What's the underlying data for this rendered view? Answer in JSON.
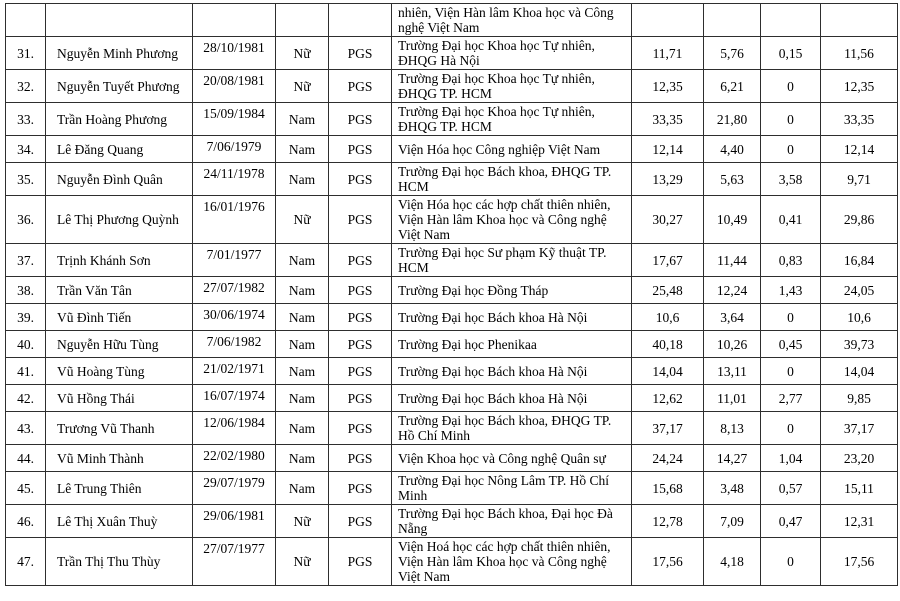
{
  "colors": {
    "background": "#ffffff",
    "border": "#2e2e2e",
    "text": "#000000"
  },
  "table": {
    "continuation": {
      "no": "",
      "name": "",
      "dob": "",
      "gender": "",
      "title": "",
      "institution": "nhiên, Viện Hàn lâm Khoa học và Công nghệ Việt Nam",
      "values": [
        "",
        "",
        "",
        ""
      ]
    },
    "rows": [
      {
        "no": "31.",
        "name": "Nguyễn Minh Phương",
        "dob": "28/10/1981",
        "gender": "Nữ",
        "title": "PGS",
        "institution": "Trường Đại học Khoa học Tự nhiên, ĐHQG  Hà Nội",
        "values": [
          "11,71",
          "5,76",
          "0,15",
          "11,56"
        ]
      },
      {
        "no": "32.",
        "name": "Nguyễn Tuyết Phương",
        "dob": "20/08/1981",
        "gender": "Nữ",
        "title": "PGS",
        "institution": "Trường Đại học Khoa học Tự nhiên, ĐHQG TP. HCM",
        "values": [
          "12,35",
          "6,21",
          "0",
          "12,35"
        ]
      },
      {
        "no": "33.",
        "name": "Trần Hoàng Phương",
        "dob": "15/09/1984",
        "gender": "Nam",
        "title": "PGS",
        "institution": "Trường Đại học Khoa học Tự nhiên, ĐHQG TP. HCM",
        "values": [
          "33,35",
          "21,80",
          "0",
          "33,35"
        ]
      },
      {
        "no": "34.",
        "name": "Lê Đăng Quang",
        "dob": "7/06/1979",
        "gender": "Nam",
        "title": "PGS",
        "institution": "Viện Hóa học Công nghiệp Việt Nam",
        "values": [
          "12,14",
          "4,40",
          "0",
          "12,14"
        ]
      },
      {
        "no": "35.",
        "name": "Nguyễn Đình Quân",
        "dob": "24/11/1978",
        "gender": "Nam",
        "title": "PGS",
        "institution": "Trường Đại học Bách khoa, ĐHQG TP. HCM",
        "values": [
          "13,29",
          "5,63",
          "3,58",
          "9,71"
        ]
      },
      {
        "no": "36.",
        "name": "Lê Thị Phương Quỳnh",
        "dob": "16/01/1976",
        "gender": "Nữ",
        "title": "PGS",
        "institution": "Viện Hóa học các hợp chất thiên nhiên, Viện Hàn lâm Khoa học và Công nghệ Việt Nam",
        "values": [
          "30,27",
          "10,49",
          "0,41",
          "29,86"
        ]
      },
      {
        "no": "37.",
        "name": "Trịnh Khánh Sơn",
        "dob": "7/01/1977",
        "gender": "Nam",
        "title": "PGS",
        "institution": "Trường Đại học Sư phạm Kỹ thuật TP. HCM",
        "values": [
          "17,67",
          "11,44",
          "0,83",
          "16,84"
        ]
      },
      {
        "no": "38.",
        "name": "Trần Văn Tân",
        "dob": "27/07/1982",
        "gender": "Nam",
        "title": "PGS",
        "institution": "Trường Đại học Đồng Tháp",
        "values": [
          "25,48",
          "12,24",
          "1,43",
          "24,05"
        ]
      },
      {
        "no": "39.",
        "name": "Vũ Đình Tiến",
        "dob": "30/06/1974",
        "gender": "Nam",
        "title": "PGS",
        "institution": "Trường Đại học Bách khoa Hà Nội",
        "values": [
          "10,6",
          "3,64",
          "0",
          "10,6"
        ]
      },
      {
        "no": "40.",
        "name": "Nguyễn Hữu Tùng",
        "dob": "7/06/1982",
        "gender": "Nam",
        "title": "PGS",
        "institution": "Trường Đại học Phenikaa",
        "values": [
          "40,18",
          "10,26",
          "0,45",
          "39,73"
        ]
      },
      {
        "no": "41.",
        "name": "Vũ Hoàng Tùng",
        "dob": "21/02/1971",
        "gender": "Nam",
        "title": "PGS",
        "institution": "Trường Đại học Bách khoa Hà Nội",
        "values": [
          "14,04",
          "13,11",
          "0",
          "14,04"
        ]
      },
      {
        "no": "42.",
        "name": "Vũ Hồng Thái",
        "dob": "16/07/1974",
        "gender": "Nam",
        "title": "PGS",
        "institution": "Trường Đại học Bách khoa Hà Nội",
        "values": [
          "12,62",
          "11,01",
          "2,77",
          "9,85"
        ]
      },
      {
        "no": "43.",
        "name": "Trương Vũ Thanh",
        "dob": "12/06/1984",
        "gender": "Nam",
        "title": "PGS",
        "institution": "Trường Đại học Bách khoa, ĐHQG TP. Hồ Chí Minh",
        "values": [
          "37,17",
          "8,13",
          "0",
          "37,17"
        ]
      },
      {
        "no": "44.",
        "name": "Vũ Minh Thành",
        "dob": "22/02/1980",
        "gender": "Nam",
        "title": "PGS",
        "institution": "Viện Khoa học và Công nghệ Quân sự",
        "values": [
          "24,24",
          "14,27",
          "1,04",
          "23,20"
        ]
      },
      {
        "no": "45.",
        "name": "Lê Trung Thiên",
        "dob": "29/07/1979",
        "gender": "Nam",
        "title": "PGS",
        "institution": "Trường Đại học Nông Lâm TP. Hồ Chí Minh",
        "values": [
          "15,68",
          "3,48",
          "0,57",
          "15,11"
        ]
      },
      {
        "no": "46.",
        "name": "Lê Thị Xuân Thuỳ",
        "dob": "29/06/1981",
        "gender": "Nữ",
        "title": "PGS",
        "institution": "Trường Đại học Bách khoa, Đại học Đà Nẵng",
        "values": [
          "12,78",
          "7,09",
          "0,47",
          "12,31"
        ]
      },
      {
        "no": "47.",
        "name": "Trần Thị Thu Thùy",
        "dob": "27/07/1977",
        "gender": "Nữ",
        "title": "PGS",
        "institution": "Viện Hoá học các hợp chất thiên nhiên, Viện Hàn lâm Khoa học và Công nghệ Việt Nam",
        "values": [
          "17,56",
          "4,18",
          "0",
          "17,56"
        ]
      }
    ]
  }
}
